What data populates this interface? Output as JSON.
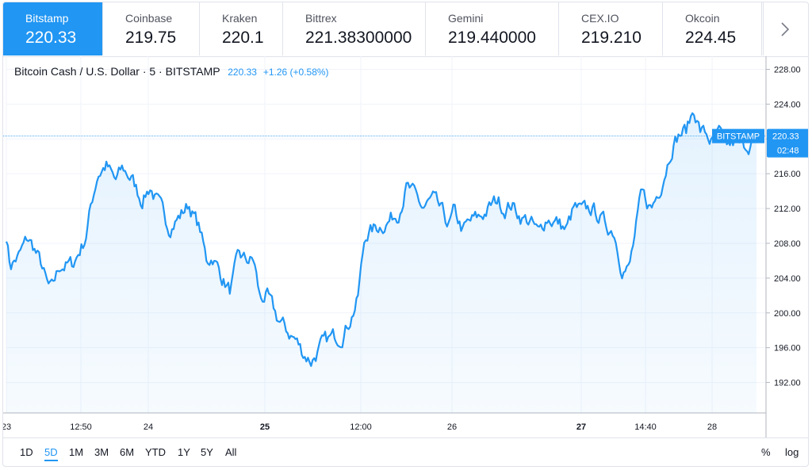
{
  "exchanges": [
    {
      "name": "Bitstamp",
      "price": "220.33",
      "active": true
    },
    {
      "name": "Coinbase",
      "price": "219.75",
      "active": false
    },
    {
      "name": "Kraken",
      "price": "220.1",
      "active": false
    },
    {
      "name": "Bittrex",
      "price": "221.38300000",
      "active": false
    },
    {
      "name": "Gemini",
      "price": "219.440000",
      "active": false
    },
    {
      "name": "CEX.IO",
      "price": "219.210",
      "active": false
    },
    {
      "name": "Okcoin",
      "price": "224.45",
      "active": false
    }
  ],
  "legend": {
    "symbol": "Bitcoin Cash / U.S. Dollar · 5 · BITSTAMP",
    "price": "220.33",
    "change": "+1.26 (+0.58%)"
  },
  "ranges": [
    "1D",
    "5D",
    "1M",
    "3M",
    "6M",
    "YTD",
    "1Y",
    "5Y",
    "All"
  ],
  "active_range": "5D",
  "scale_options": {
    "percent": "%",
    "log": "log"
  },
  "colors": {
    "accent": "#2196f3",
    "grid": "#f0f3fa",
    "text": "#131722"
  },
  "chart_data": {
    "type": "area",
    "x_tick_labels": [
      "23",
      "12:50",
      "24",
      "25",
      "12:00",
      "26",
      "27",
      "14:40",
      "28"
    ],
    "bold_x_ticks": [
      "25",
      "27"
    ],
    "y_tick_labels": [
      "192.00",
      "196.00",
      "200.00",
      "204.00",
      "208.00",
      "212.00",
      "216.00",
      "220.00",
      "224.00",
      "228.00"
    ],
    "ylim": [
      188.5,
      229.5
    ],
    "last_price": 220.33,
    "last_price_label": "220.33",
    "price_line_label": "BITSTAMP",
    "countdown": "02:48",
    "anchors": [
      [
        0,
        209.0
      ],
      [
        0.3,
        205.5
      ],
      [
        1,
        206.5
      ],
      [
        1.7,
        208.5
      ],
      [
        2.2,
        207.5
      ],
      [
        2.8,
        205.5
      ],
      [
        3.3,
        203.0
      ],
      [
        3.6,
        202.5
      ],
      [
        4.3,
        205.5
      ],
      [
        5.3,
        205.5
      ],
      [
        6.3,
        208.5
      ],
      [
        6.8,
        212.5
      ],
      [
        7.3,
        216.0
      ],
      [
        8,
        217.0
      ],
      [
        8.7,
        215.0
      ],
      [
        9.3,
        216.5
      ],
      [
        10,
        215.5
      ],
      [
        10.8,
        213.0
      ],
      [
        11.5,
        214.5
      ],
      [
        12.3,
        212.0
      ],
      [
        13,
        210.0
      ],
      [
        13.8,
        211.0
      ],
      [
        14.6,
        212.5
      ],
      [
        15.5,
        209.5
      ],
      [
        16,
        206.0
      ],
      [
        16.5,
        206.5
      ],
      [
        17.3,
        204.0
      ],
      [
        17.9,
        202.5
      ],
      [
        18.6,
        206.5
      ],
      [
        19.1,
        206.0
      ],
      [
        19.8,
        206.0
      ],
      [
        20.3,
        201.5
      ],
      [
        20.8,
        202.0
      ],
      [
        21.6,
        199.5
      ],
      [
        22.4,
        198.0
      ],
      [
        23.1,
        197.0
      ],
      [
        23.7,
        195.5
      ],
      [
        24.4,
        194.5
      ],
      [
        25.1,
        196.0
      ],
      [
        25.9,
        197.0
      ],
      [
        26.8,
        197.5
      ],
      [
        27.4,
        199.0
      ],
      [
        28.1,
        201.5
      ],
      [
        28.7,
        209.0
      ],
      [
        29.3,
        209.5
      ],
      [
        29.8,
        210.0
      ],
      [
        30.5,
        210.5
      ],
      [
        31.3,
        211.5
      ],
      [
        32,
        214.5
      ],
      [
        32.6,
        213.5
      ],
      [
        33.3,
        212.0
      ],
      [
        34.1,
        213.0
      ],
      [
        34.8,
        211.5
      ],
      [
        35.4,
        210.0
      ],
      [
        35.8,
        211.5
      ],
      [
        36.5,
        209.5
      ],
      [
        37.2,
        210.5
      ],
      [
        37.9,
        211.0
      ],
      [
        38.6,
        212.0
      ],
      [
        39.3,
        213.0
      ],
      [
        39.8,
        212.0
      ],
      [
        40.4,
        212.5
      ],
      [
        41.2,
        211.0
      ],
      [
        41.9,
        210.5
      ],
      [
        42.6,
        209.0
      ],
      [
        43.2,
        211.0
      ],
      [
        44,
        210.5
      ],
      [
        44.8,
        209.5
      ],
      [
        45.4,
        212.0
      ],
      [
        46.1,
        211.5
      ],
      [
        46.8,
        212.0
      ],
      [
        47.5,
        211.0
      ],
      [
        48,
        210.0
      ],
      [
        48.6,
        209.5
      ],
      [
        49.2,
        205.5
      ],
      [
        49.8,
        205.0
      ],
      [
        50.3,
        209.0
      ],
      [
        50.8,
        213.5
      ],
      [
        51.6,
        212.0
      ],
      [
        52.3,
        214.5
      ],
      [
        52.8,
        217.0
      ],
      [
        53.3,
        219.5
      ],
      [
        53.8,
        220.5
      ],
      [
        54.4,
        221.0
      ],
      [
        55,
        223.5
      ],
      [
        55.5,
        221.0
      ],
      [
        56,
        220.5
      ],
      [
        56.5,
        219.5
      ],
      [
        57,
        220.5
      ],
      [
        57.6,
        219.0
      ],
      [
        58.2,
        219.5
      ],
      [
        58.8,
        219.0
      ],
      [
        59.4,
        219.5
      ],
      [
        60,
        220.33
      ]
    ]
  }
}
